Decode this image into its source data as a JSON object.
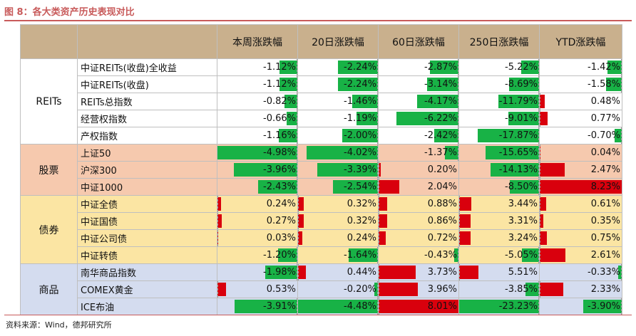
{
  "figure_title": "图 8：各大类资产历史表现对比",
  "source": "资料来源：Wind，德邦研究所",
  "colors": {
    "header_bg": "#c9b08d",
    "positive_bar": "#d9000d",
    "negative_bar": "#18b246",
    "group_reits_bg": "#ffffff",
    "group_stock_bg": "#f6c9ae",
    "group_bond_bg": "#fbe5a3",
    "group_commodity_bg": "#d4dcef"
  },
  "columns": [
    "本周涨跌幅",
    "20日涨跌幅",
    "60日涨跌幅",
    "250日涨跌幅",
    "YTD涨跌幅"
  ],
  "groups": [
    {
      "name": "REITs",
      "key": "reits",
      "rows": [
        {
          "name": "中证REITs(收盘)全收益",
          "values": [
            "-1.12%",
            "-2.24%",
            "-2.87%",
            "-5.22%",
            "-1.42%"
          ]
        },
        {
          "name": "中证REITs(收盘)",
          "values": [
            "-1.12%",
            "-2.24%",
            "-3.14%",
            "-8.69%",
            "-1.58%"
          ]
        },
        {
          "name": "REITs总指数",
          "values": [
            "-0.82%",
            "-1.46%",
            "-4.17%",
            "-11.79%",
            "0.48%"
          ]
        },
        {
          "name": "经营权指数",
          "values": [
            "-0.66%",
            "-1.19%",
            "-6.22%",
            "-9.01%",
            "0.77%"
          ]
        },
        {
          "name": "产权指数",
          "values": [
            "-1.16%",
            "-2.00%",
            "-2.42%",
            "-17.87%",
            "-0.70%"
          ]
        }
      ]
    },
    {
      "name": "股票",
      "key": "stock",
      "rows": [
        {
          "name": "上证50",
          "values": [
            "-4.98%",
            "-4.02%",
            "-1.37%",
            "-15.65%",
            "0.04%"
          ]
        },
        {
          "name": "沪深300",
          "values": [
            "-3.96%",
            "-3.39%",
            "0.20%",
            "-14.13%",
            "2.47%"
          ]
        },
        {
          "name": "中证1000",
          "values": [
            "-2.43%",
            "-2.54%",
            "2.04%",
            "-8.50%",
            "8.23%"
          ]
        }
      ]
    },
    {
      "name": "债券",
      "key": "bond",
      "rows": [
        {
          "name": "中证全债",
          "values": [
            "0.24%",
            "0.32%",
            "0.88%",
            "3.44%",
            "0.61%"
          ]
        },
        {
          "name": "中证国债",
          "values": [
            "0.27%",
            "0.32%",
            "0.86%",
            "3.31%",
            "0.35%"
          ]
        },
        {
          "name": "中证公司债",
          "values": [
            "0.03%",
            "0.24%",
            "0.72%",
            "3.24%",
            "0.75%"
          ]
        },
        {
          "name": "中证转债",
          "values": [
            "-1.20%",
            "-1.64%",
            "-0.43%",
            "-5.05%",
            "2.61%"
          ]
        }
      ]
    },
    {
      "name": "商品",
      "key": "comm",
      "rows": [
        {
          "name": "南华商品指数",
          "values": [
            "-1.98%",
            "0.44%",
            "3.73%",
            "5.51%",
            "-0.33%"
          ]
        },
        {
          "name": "COMEX黄金",
          "values": [
            "0.53%",
            "-0.20%",
            "3.96%",
            "-3.85%",
            "2.33%"
          ]
        },
        {
          "name": "ICE布油",
          "values": [
            "-3.91%",
            "-4.48%",
            "8.01%",
            "-23.23%",
            "-3.90%"
          ]
        }
      ]
    }
  ]
}
